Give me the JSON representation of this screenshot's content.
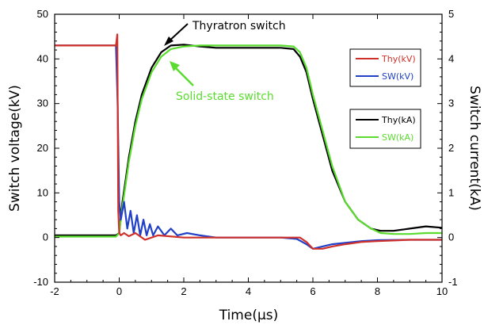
{
  "chart_data": {
    "type": "line",
    "xlabel": "Time(μs)",
    "ylabel_left": "Switch voltage(kV)",
    "ylabel_right": "Switch current(kA)",
    "xlim": [
      -2,
      10
    ],
    "ylim_left": [
      -10,
      50
    ],
    "ylim_right": [
      -1,
      5
    ],
    "x_ticks": [
      -2,
      0,
      2,
      4,
      6,
      8,
      10
    ],
    "y_ticks_left": [
      -10,
      0,
      10,
      20,
      30,
      40,
      50
    ],
    "y_ticks_right": [
      -1,
      0,
      1,
      2,
      3,
      4,
      5
    ],
    "grid": false,
    "series": [
      {
        "name": "Thy(kV)",
        "axis": "left",
        "color": "#d0302a",
        "x": [
          -2,
          -0.1,
          -0.06,
          -0.03,
          0,
          0.05,
          0.15,
          0.3,
          0.5,
          0.8,
          1.2,
          2,
          3,
          4,
          5,
          5.6,
          5.8,
          6.0,
          6.3,
          6.6,
          7,
          7.5,
          8,
          9,
          10
        ],
        "y": [
          43,
          43,
          45.5,
          6,
          1,
          0.5,
          1,
          0.3,
          1,
          -0.5,
          0.5,
          0,
          0,
          0,
          0,
          0,
          -1,
          -2.5,
          -2.5,
          -2,
          -1.5,
          -1,
          -0.8,
          -0.5,
          -0.5
        ]
      },
      {
        "name": "SW(kV)",
        "axis": "left",
        "color": "#2040c8",
        "x": [
          -2,
          -0.1,
          -0.05,
          0,
          0.05,
          0.15,
          0.25,
          0.35,
          0.45,
          0.55,
          0.65,
          0.75,
          0.85,
          0.95,
          1.05,
          1.2,
          1.4,
          1.6,
          1.8,
          2.1,
          2.5,
          3,
          4,
          5,
          5.5,
          5.8,
          6.0,
          6.3,
          6.6,
          7,
          7.5,
          8,
          9,
          10
        ],
        "y": [
          43,
          43,
          30,
          8,
          4,
          8,
          2,
          6,
          1,
          5,
          0.5,
          4,
          0.5,
          3,
          0.5,
          2.5,
          0.5,
          2,
          0.5,
          1,
          0.5,
          0,
          0,
          0,
          -0.3,
          -1.5,
          -2.5,
          -2,
          -1.5,
          -1.2,
          -0.8,
          -0.6,
          -0.5,
          -0.5
        ]
      },
      {
        "name": "Thy(kA)",
        "axis": "right",
        "color": "#000000",
        "x": [
          -2,
          -0.1,
          0,
          0.1,
          0.2,
          0.3,
          0.5,
          0.7,
          1.0,
          1.3,
          1.6,
          2.0,
          2.5,
          3,
          4,
          5,
          5.4,
          5.6,
          5.8,
          6.0,
          6.3,
          6.6,
          7.0,
          7.4,
          7.8,
          8.1,
          8.5,
          9,
          9.5,
          10
        ],
        "y": [
          0.05,
          0.05,
          0.1,
          0.8,
          1.3,
          1.8,
          2.6,
          3.2,
          3.8,
          4.15,
          4.3,
          4.32,
          4.28,
          4.25,
          4.25,
          4.25,
          4.22,
          4.05,
          3.7,
          3.1,
          2.3,
          1.5,
          0.8,
          0.4,
          0.2,
          0.15,
          0.15,
          0.2,
          0.25,
          0.22
        ]
      },
      {
        "name": "SW(kA)",
        "axis": "right",
        "color": "#5adc2e",
        "x": [
          -2,
          -0.1,
          0,
          0.1,
          0.2,
          0.3,
          0.5,
          0.7,
          1.0,
          1.3,
          1.6,
          2.0,
          2.5,
          3,
          4,
          5,
          5.4,
          5.6,
          5.8,
          6.0,
          6.3,
          6.6,
          7.0,
          7.4,
          7.8,
          8.1,
          8.5,
          9,
          9.5,
          10
        ],
        "y": [
          0.02,
          0.02,
          0.1,
          0.7,
          1.2,
          1.7,
          2.5,
          3.1,
          3.7,
          4.05,
          4.22,
          4.28,
          4.3,
          4.3,
          4.3,
          4.3,
          4.28,
          4.15,
          3.8,
          3.2,
          2.4,
          1.6,
          0.8,
          0.4,
          0.2,
          0.1,
          0.08,
          0.08,
          0.1,
          0.1
        ]
      }
    ],
    "annotations": [
      {
        "text": "Thyratron switch",
        "color": "#000000",
        "arrow_to_x": 1.35,
        "arrow_to_y": 43.5
      },
      {
        "text": "Solid-state switch",
        "color": "#5adc2e",
        "arrow_to_x": 1.45,
        "arrow_to_y": 39.5
      }
    ],
    "legends": [
      {
        "position": "upper-right",
        "entries": [
          "Thy(kV)",
          "SW(kV)"
        ]
      },
      {
        "position": "right-middle",
        "entries": [
          "Thy(kA)",
          "SW(kA)"
        ]
      }
    ]
  }
}
